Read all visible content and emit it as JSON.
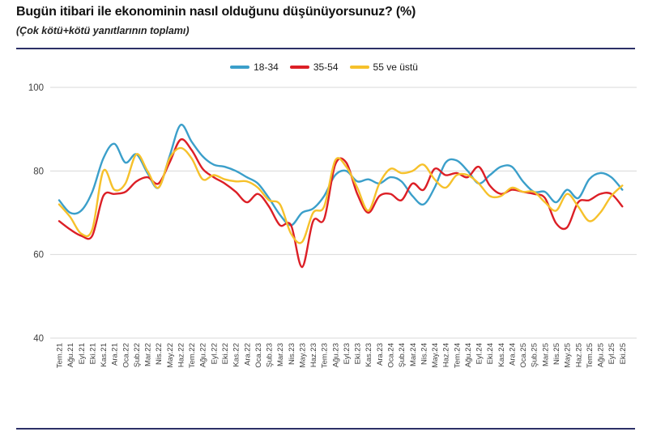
{
  "header": {
    "title": "Bugün itibari ile ekonominin nasıl olduğunu düşünüyorsunuz? (%)",
    "subtitle": "(Çok kötü+kötü yanıtlarının toplamı)"
  },
  "accent_rule_color": "#2c3067",
  "legend": {
    "items": [
      {
        "label": "18-34",
        "color": "#3b9fca"
      },
      {
        "label": "35-54",
        "color": "#dc1f26"
      },
      {
        "label": "55 ve üstü",
        "color": "#f6c12b"
      }
    ]
  },
  "chart_data": {
    "type": "line",
    "title": "Bugün itibari ile ekonominin nasıl olduğunu düşünüyorsunuz? (%)",
    "subtitle": "(Çok kötü+kötü yanıtlarının toplamı)",
    "xlabel": "",
    "ylabel": "",
    "ylim": [
      40,
      100
    ],
    "yticks": [
      40,
      60,
      80,
      100
    ],
    "grid": true,
    "legend_position": "top-center",
    "gridline_color": "#d9d9d9",
    "tick_label_color": "#404040",
    "categories": [
      "Tem.21",
      "Ağu.21",
      "Eyl.21",
      "Eki.21",
      "Kas.21",
      "Ara.21",
      "Oca.22",
      "Şub.22",
      "Mar.22",
      "Nis.22",
      "May.22",
      "Haz.22",
      "Tem.22",
      "Ağu.22",
      "Eyl.22",
      "Eki.22",
      "Kas.22",
      "Ara.22",
      "Oca.23",
      "Şub.23",
      "Mar.23",
      "Nis.23",
      "May.23",
      "Haz.23",
      "Tem.23",
      "Ağu.23",
      "Eyl.23",
      "Eki.23",
      "Kas.23",
      "Ara.23",
      "Oca.24",
      "Şub.24",
      "Mar.24",
      "Nis.24",
      "May.24",
      "Haz.24",
      "Tem.24",
      "Ağu.24",
      "Eyl.24",
      "Eki.24",
      "Kas.24",
      "Ara.24",
      "Oca.25",
      "Şub.25",
      "Mar.25",
      "Nis.25",
      "May.25",
      "Haz.25",
      "Tem.25",
      "Ağu.25",
      "Eyl.25",
      "Eki.25"
    ],
    "series": [
      {
        "name": "18-34",
        "color": "#3b9fca",
        "values": [
          73,
          70,
          70.5,
          75,
          83,
          86.5,
          82,
          84,
          79.5,
          76,
          83.5,
          91,
          87,
          83.5,
          81.5,
          81,
          80,
          78.5,
          77,
          73.5,
          69.5,
          67,
          70,
          71,
          74,
          79,
          80,
          77.5,
          78,
          77,
          78.5,
          77.5,
          74,
          72,
          76,
          82,
          82.5,
          80,
          77,
          79,
          81,
          81,
          77.5,
          75,
          75,
          72.5,
          75.5,
          73.5,
          78,
          79.5,
          78.5,
          75.5
        ]
      },
      {
        "name": "35-54",
        "color": "#dc1f26",
        "values": [
          68,
          66,
          64.5,
          64.5,
          74,
          74.5,
          75,
          77.5,
          78.5,
          77,
          82,
          87.5,
          85,
          80.5,
          78.5,
          77,
          75,
          72.5,
          74.5,
          71.5,
          67,
          67,
          57,
          68,
          68.5,
          81.5,
          82,
          74.5,
          70,
          74,
          74.5,
          73,
          77,
          75.5,
          80.5,
          79,
          79.5,
          78.5,
          81,
          76.5,
          74.5,
          75.5,
          75,
          74.5,
          73.5,
          67.5,
          66.5,
          72.5,
          73,
          74.5,
          74.5,
          71.5
        ]
      },
      {
        "name": "55 ve üstü",
        "color": "#f6c12b",
        "values": [
          72,
          69,
          65,
          66,
          80,
          75.5,
          77,
          84,
          80,
          76,
          83,
          85.5,
          83,
          78,
          79,
          78,
          77.5,
          77.5,
          76,
          73,
          72,
          65,
          63,
          70,
          71.5,
          82.5,
          81,
          76,
          70.5,
          77,
          80.5,
          79.5,
          80,
          81.5,
          78,
          76,
          79,
          79,
          77,
          74,
          74,
          76,
          75,
          75,
          72.5,
          70.5,
          74.5,
          71.5,
          68,
          70,
          74,
          76.5
        ]
      }
    ]
  }
}
